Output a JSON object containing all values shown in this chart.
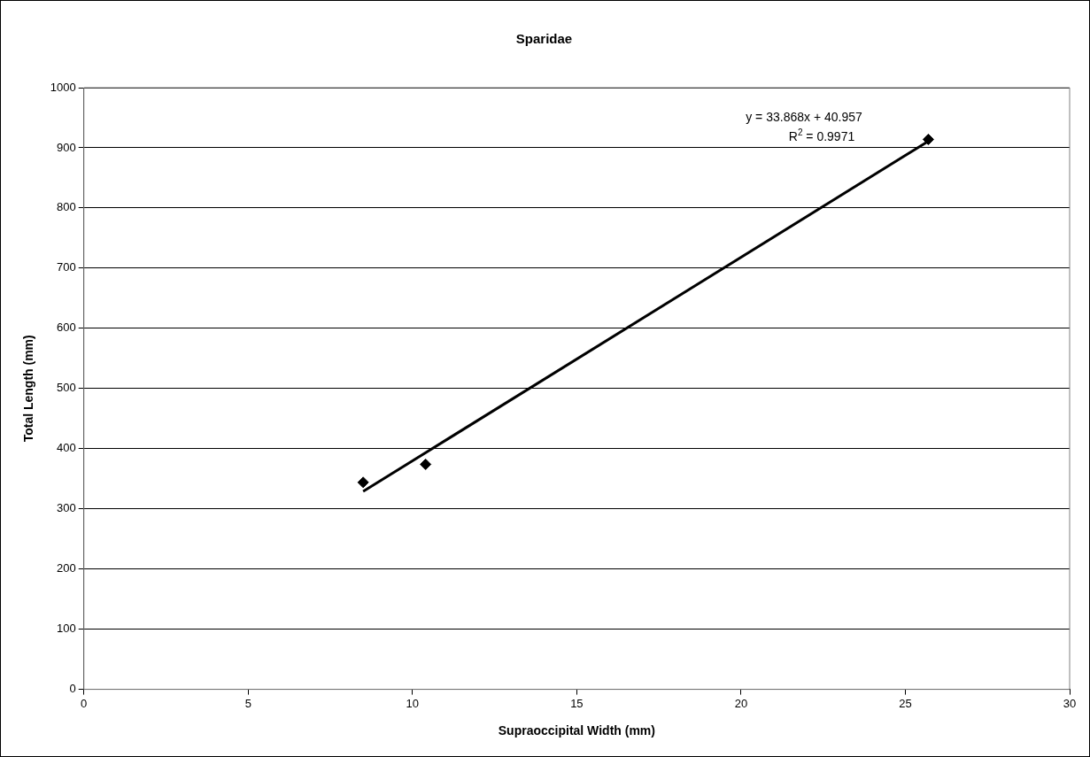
{
  "chart_data": {
    "type": "scatter",
    "title": "Sparidae",
    "xlabel": "Supraoccipital Width (mm)",
    "ylabel": "Total Length (mm)",
    "xlim": [
      0,
      30
    ],
    "xticks": [
      0,
      5,
      10,
      15,
      20,
      25,
      30
    ],
    "ylim": [
      0,
      1000
    ],
    "yticks": [
      0,
      100,
      200,
      300,
      400,
      500,
      600,
      700,
      800,
      900,
      1000
    ],
    "grid": "y",
    "legend": false,
    "marker": "diamond",
    "series": [
      {
        "type": "scatter",
        "color": "#000000",
        "x": [
          8.5,
          10.4,
          25.7
        ],
        "values": [
          344,
          374,
          914
        ]
      },
      {
        "type": "line",
        "color": "#000000",
        "x": [
          8.5,
          25.7
        ],
        "values": [
          329,
          911
        ],
        "marker": "none"
      }
    ],
    "annotations": [
      "y = 33.868x + 40.957",
      "R$^{2}$ = 0.9971"
    ]
  }
}
